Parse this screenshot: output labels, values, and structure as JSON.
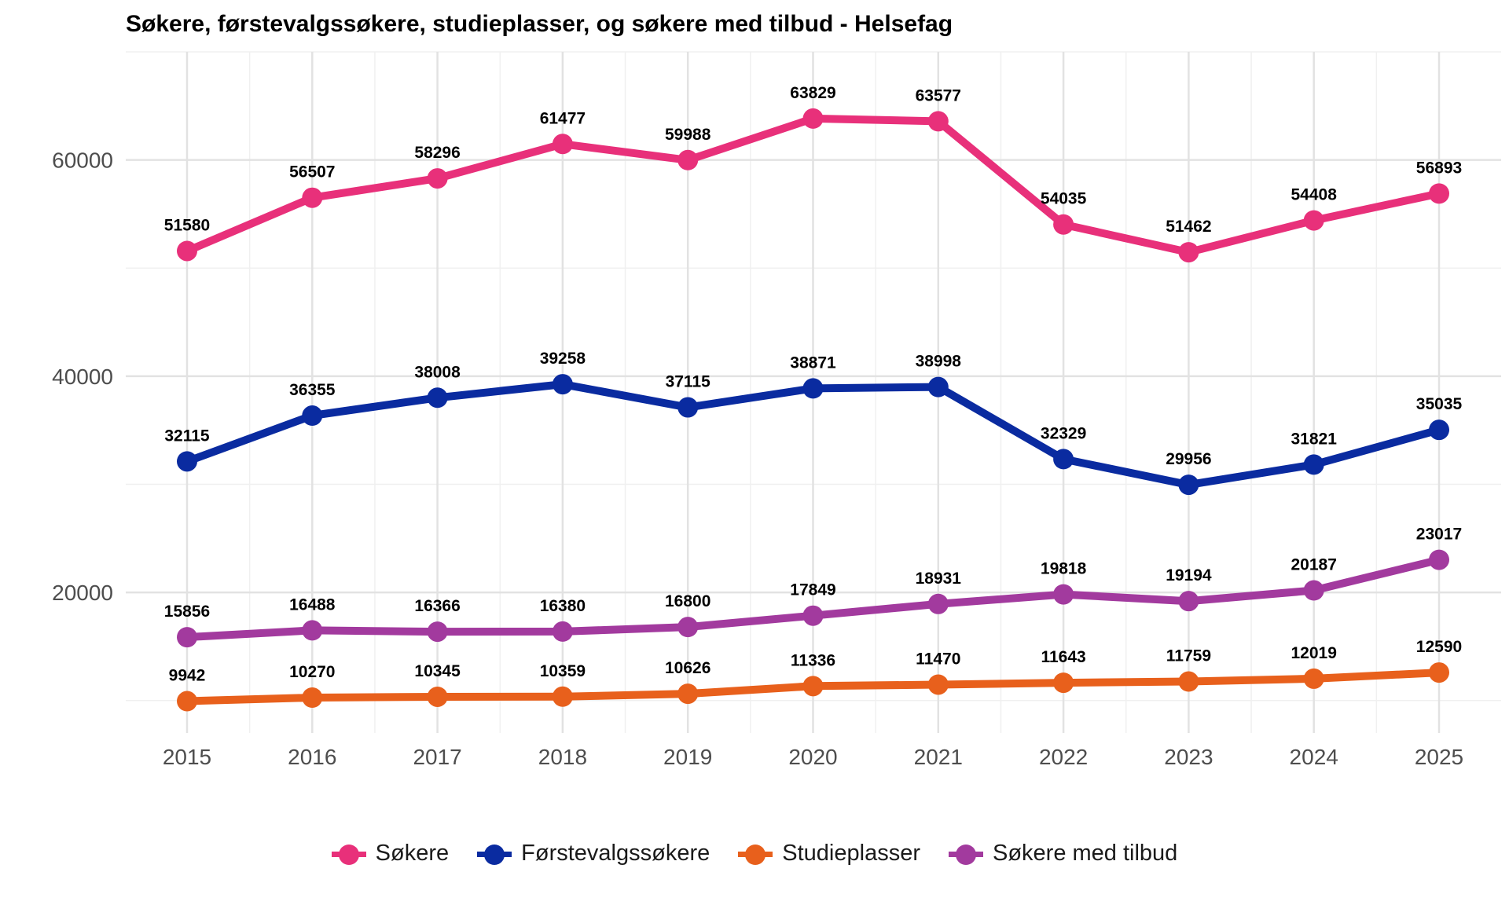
{
  "chart_data": {
    "type": "line",
    "title": "Søkere, førstevalgssøkere, studieplasser, og søkere med tilbud - Helsefag",
    "xlabel": "",
    "ylabel": "",
    "x": [
      2015,
      2016,
      2017,
      2018,
      2019,
      2020,
      2021,
      2022,
      2023,
      2024,
      2025
    ],
    "x_tick_labels": [
      "2015",
      "2016",
      "2017",
      "2018",
      "2019",
      "2020",
      "2021",
      "2022",
      "2023",
      "2024",
      "2025"
    ],
    "y_ticks": [
      20000,
      40000,
      60000
    ],
    "y_tick_labels": [
      "20000",
      "40000",
      "60000"
    ],
    "ylim": [
      7000,
      70000
    ],
    "grid": true,
    "legend_position": "bottom",
    "series": [
      {
        "name": "Søkere",
        "color": "#E8307A",
        "values": [
          51580,
          56507,
          58296,
          61477,
          59988,
          63829,
          63577,
          54035,
          51462,
          54408,
          56893
        ],
        "labels": [
          "51580",
          "56507",
          "58296",
          "61477",
          "59988",
          "63829",
          "63577",
          "54035",
          "51462",
          "54408",
          "56893"
        ]
      },
      {
        "name": "Førstevalgssøkere",
        "color": "#0A2BA0",
        "values": [
          32115,
          36355,
          38008,
          39258,
          37115,
          38871,
          38998,
          32329,
          29956,
          31821,
          35035
        ],
        "labels": [
          "32115",
          "36355",
          "38008",
          "39258",
          "37115",
          "38871",
          "38998",
          "32329",
          "29956",
          "31821",
          "35035"
        ]
      },
      {
        "name": "Studieplasser",
        "color": "#E8601C",
        "values": [
          9942,
          10270,
          10345,
          10359,
          10626,
          11336,
          11470,
          11643,
          11759,
          12019,
          12590
        ],
        "labels": [
          "9942",
          "10270",
          "10345",
          "10359",
          "10626",
          "11336",
          "11470",
          "11643",
          "11759",
          "12019",
          "12590"
        ]
      },
      {
        "name": "Søkere med tilbud",
        "color": "#A23A9E",
        "values": [
          15856,
          16488,
          16366,
          16380,
          16800,
          17849,
          18931,
          19818,
          19194,
          20187,
          23017
        ],
        "labels": [
          "15856",
          "16488",
          "16366",
          "16380",
          "16800",
          "17849",
          "18931",
          "19818",
          "19194",
          "20187",
          "23017"
        ]
      }
    ]
  }
}
